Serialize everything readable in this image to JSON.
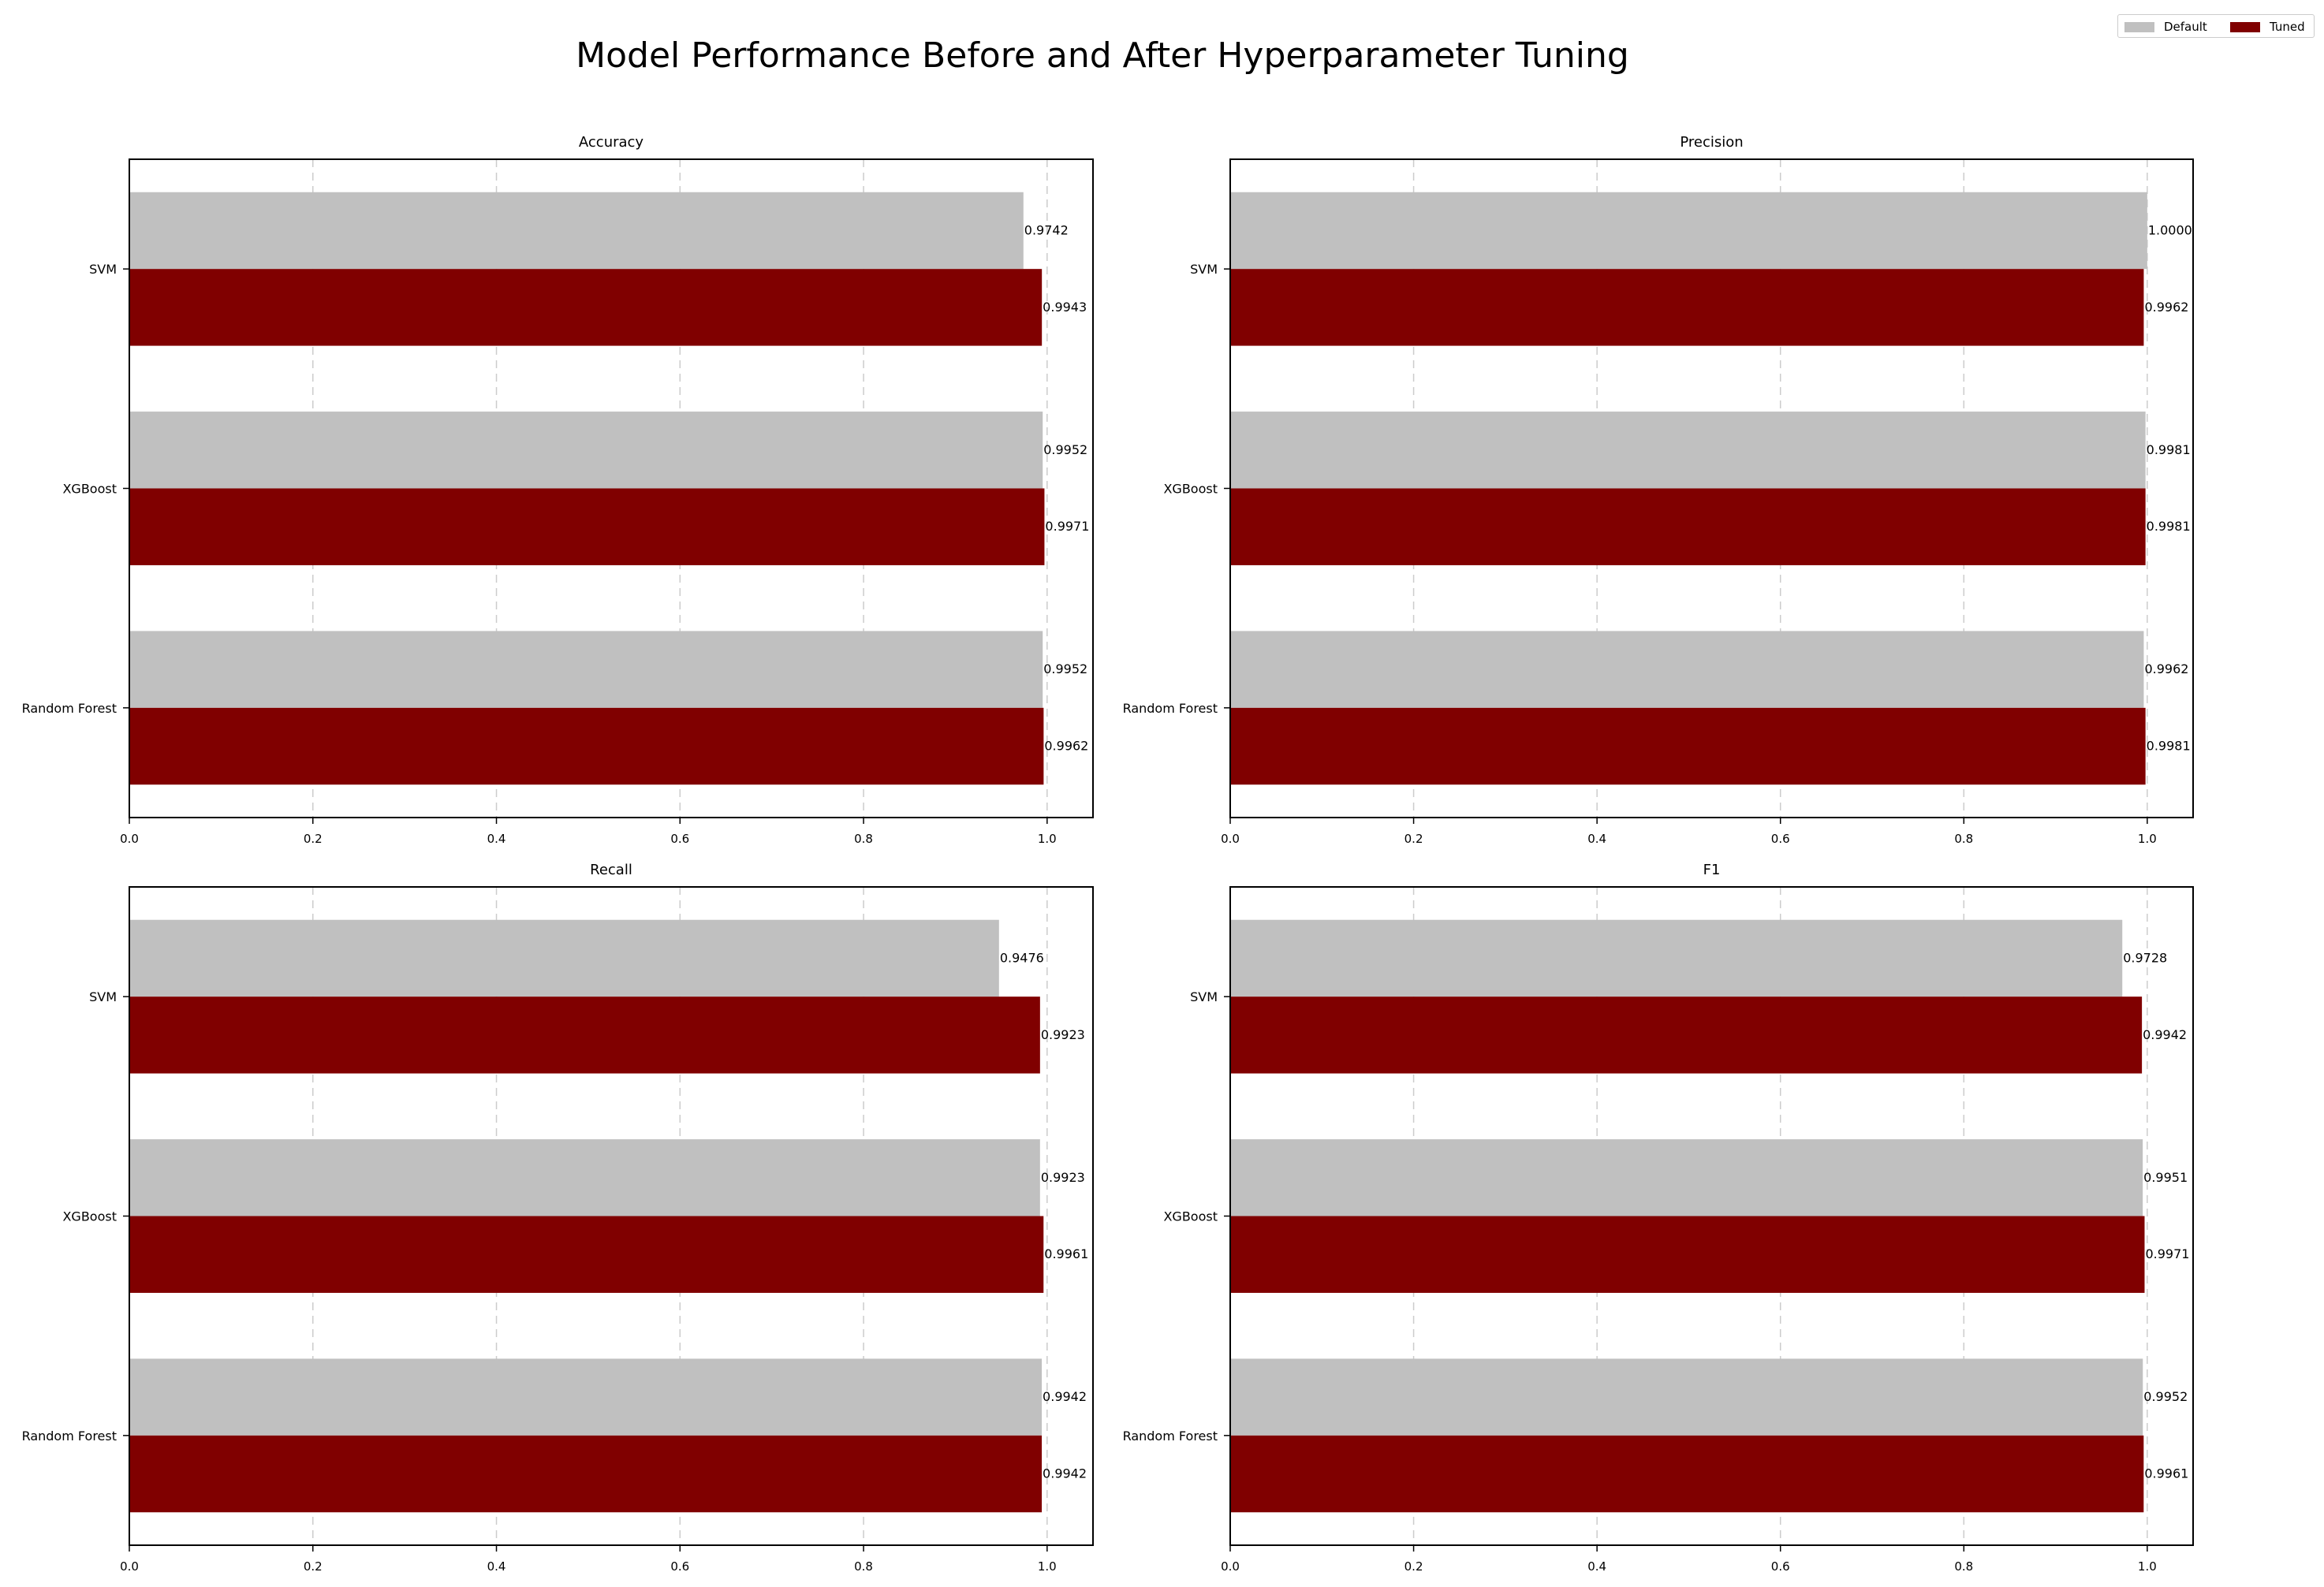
{
  "figure": {
    "title": "Model Performance Before and After Hyperparameter Tuning"
  },
  "legend": {
    "items": [
      {
        "label": "Default",
        "color": "#c0c0c0"
      },
      {
        "label": "Tuned",
        "color": "#800000"
      }
    ]
  },
  "chart_data": [
    {
      "type": "bar",
      "orientation": "horizontal",
      "title": "Accuracy",
      "categories": [
        "SVM",
        "XGBoost",
        "Random Forest"
      ],
      "series": [
        {
          "name": "Default",
          "color": "#c0c0c0",
          "values": [
            0.9742,
            0.9952,
            0.9952
          ],
          "labels": [
            "0.9742",
            "0.9952",
            "0.9952"
          ]
        },
        {
          "name": "Tuned",
          "color": "#800000",
          "values": [
            0.9943,
            0.9971,
            0.9962
          ],
          "labels": [
            "0.9943",
            "0.9971",
            "0.9962"
          ]
        }
      ],
      "xlim": [
        0,
        1.05
      ],
      "xticks": [
        "0.0",
        "0.2",
        "0.4",
        "0.6",
        "0.8",
        "1.0"
      ],
      "grid": true
    },
    {
      "type": "bar",
      "orientation": "horizontal",
      "title": "Precision",
      "categories": [
        "SVM",
        "XGBoost",
        "Random Forest"
      ],
      "series": [
        {
          "name": "Default",
          "color": "#c0c0c0",
          "values": [
            1.0,
            0.9981,
            0.9962
          ],
          "labels": [
            "1.0000",
            "0.9981",
            "0.9962"
          ]
        },
        {
          "name": "Tuned",
          "color": "#800000",
          "values": [
            0.9962,
            0.9981,
            0.9981
          ],
          "labels": [
            "0.9962",
            "0.9981",
            "0.9981"
          ]
        }
      ],
      "xlim": [
        0,
        1.05
      ],
      "xticks": [
        "0.0",
        "0.2",
        "0.4",
        "0.6",
        "0.8",
        "1.0"
      ],
      "grid": true
    },
    {
      "type": "bar",
      "orientation": "horizontal",
      "title": "Recall",
      "categories": [
        "SVM",
        "XGBoost",
        "Random Forest"
      ],
      "series": [
        {
          "name": "Default",
          "color": "#c0c0c0",
          "values": [
            0.9476,
            0.9923,
            0.9942
          ],
          "labels": [
            "0.9476",
            "0.9923",
            "0.9942"
          ]
        },
        {
          "name": "Tuned",
          "color": "#800000",
          "values": [
            0.9923,
            0.9961,
            0.9942
          ],
          "labels": [
            "0.9923",
            "0.9961",
            "0.9942"
          ]
        }
      ],
      "xlim": [
        0,
        1.05
      ],
      "xticks": [
        "0.0",
        "0.2",
        "0.4",
        "0.6",
        "0.8",
        "1.0"
      ],
      "grid": true
    },
    {
      "type": "bar",
      "orientation": "horizontal",
      "title": "F1",
      "categories": [
        "SVM",
        "XGBoost",
        "Random Forest"
      ],
      "series": [
        {
          "name": "Default",
          "color": "#c0c0c0",
          "values": [
            0.9728,
            0.9951,
            0.9952
          ],
          "labels": [
            "0.9728",
            "0.9951",
            "0.9952"
          ]
        },
        {
          "name": "Tuned",
          "color": "#800000",
          "values": [
            0.9942,
            0.9971,
            0.9961
          ],
          "labels": [
            "0.9942",
            "0.9971",
            "0.9961"
          ]
        }
      ],
      "xlim": [
        0,
        1.05
      ],
      "xticks": [
        "0.0",
        "0.2",
        "0.4",
        "0.6",
        "0.8",
        "1.0"
      ],
      "grid": true
    }
  ]
}
